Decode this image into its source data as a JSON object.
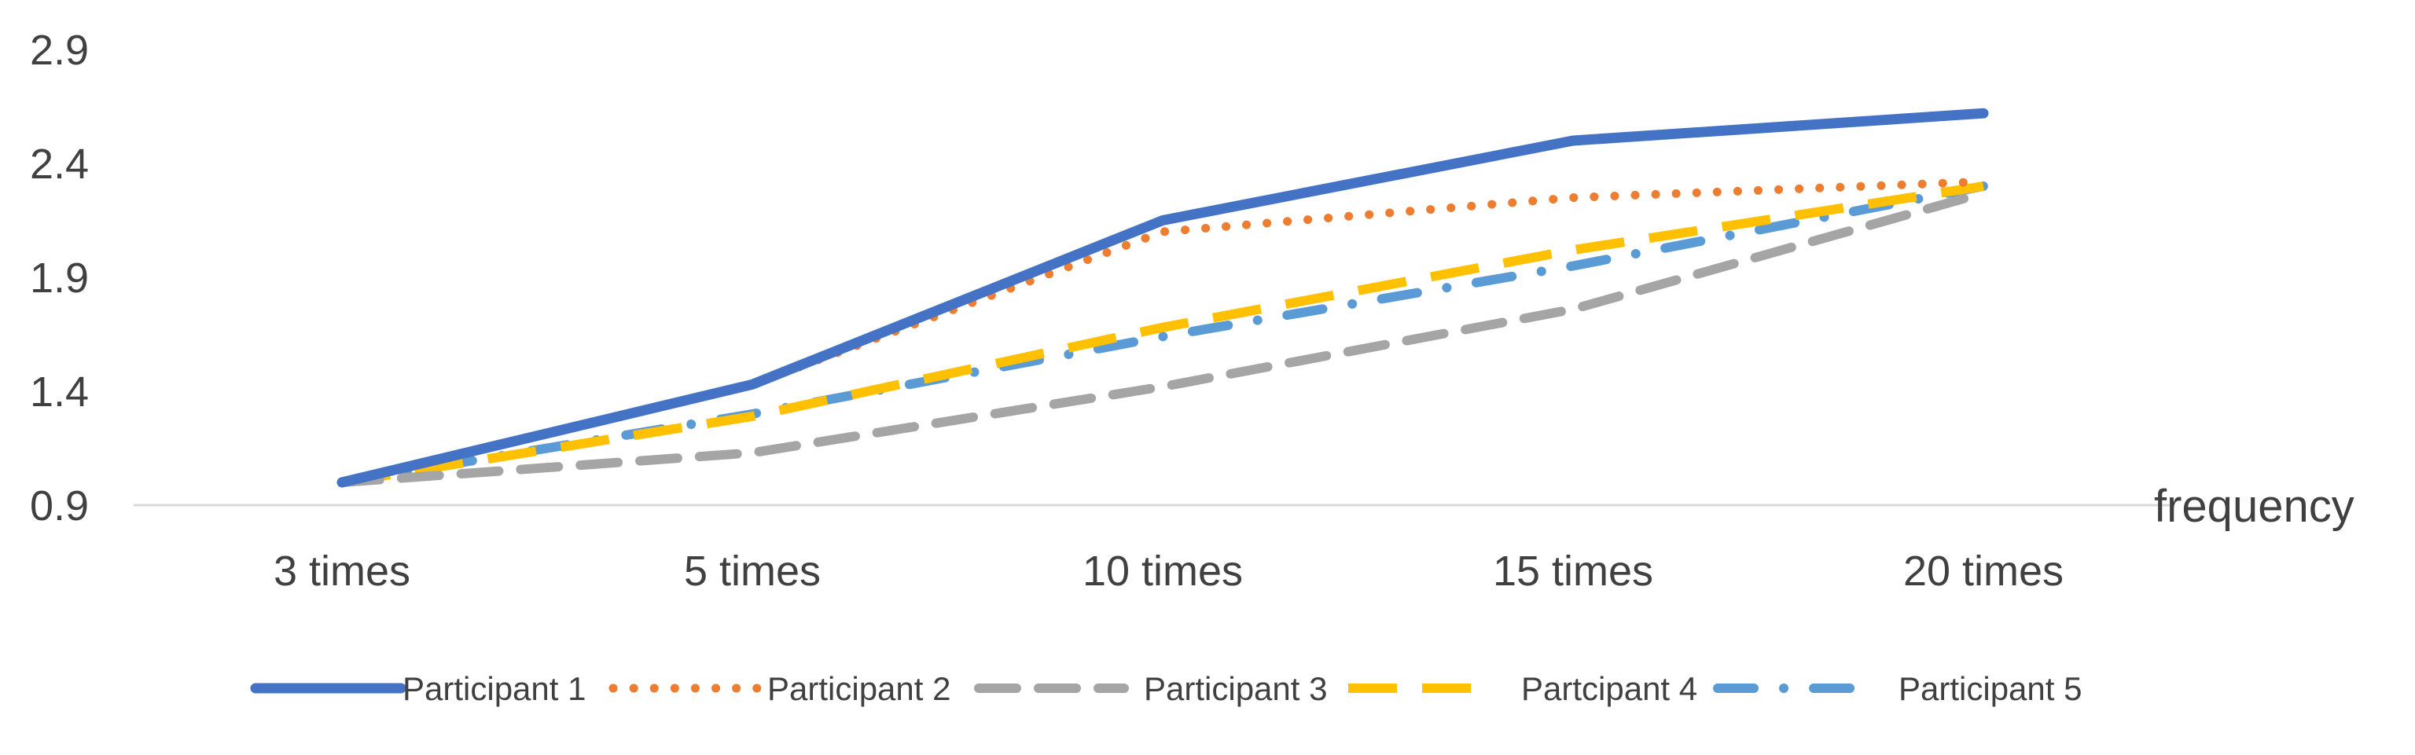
{
  "chart_data": {
    "type": "line",
    "title": "",
    "xlabel": "frequency",
    "ylabel": "",
    "categories": [
      "3 times",
      "5 times",
      "10 times",
      "15 times",
      "20 times"
    ],
    "y_ticks": [
      "0.9",
      "1.4",
      "1.9",
      "2.4",
      "2.9"
    ],
    "ylim": [
      0.9,
      2.9
    ],
    "grid": false,
    "legend_position": "bottom",
    "series": [
      {
        "name": "Participant 1",
        "values": [
          1.0,
          1.43,
          2.15,
          2.5,
          2.62
        ],
        "color": "#4472C4",
        "dash": "solid"
      },
      {
        "name": "Participant 2",
        "values": [
          1.0,
          1.43,
          2.1,
          2.25,
          2.32
        ],
        "color": "#ED7D31",
        "dash": "dot"
      },
      {
        "name": "Participant 3",
        "values": [
          1.0,
          1.13,
          1.42,
          1.76,
          2.27
        ],
        "color": "#A5A5A5",
        "dash": "dash"
      },
      {
        "name": "Partcipant 4",
        "values": [
          1.0,
          1.29,
          1.68,
          2.02,
          2.3
        ],
        "color": "#FFC000",
        "dash": "longdash"
      },
      {
        "name": "Participant 5",
        "values": [
          1.0,
          1.3,
          1.64,
          1.95,
          2.3
        ],
        "color": "#5B9BD5",
        "dash": "dashdot"
      }
    ]
  }
}
